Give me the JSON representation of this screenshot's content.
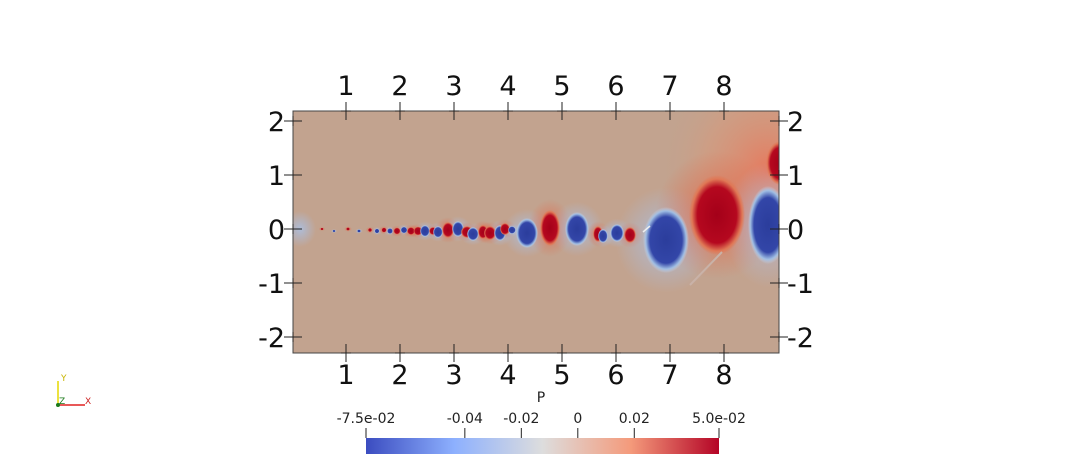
{
  "view": {
    "x_ticks": [
      "1",
      "2",
      "3",
      "4",
      "5",
      "6",
      "7",
      "8"
    ],
    "y_ticks": [
      "2",
      "1",
      "0",
      "-1",
      "-2"
    ]
  },
  "colorbar": {
    "title": "P",
    "labels": [
      "-7.5e-02",
      "-0.04",
      "-0.02",
      "0",
      "0.02",
      "5.0e-02"
    ],
    "values": [
      -0.075,
      -0.04,
      -0.02,
      0,
      0.02,
      0.05
    ],
    "range": [
      -0.075,
      0.05
    ],
    "colors": {
      "low": "#3b4cc0",
      "mid": "#dddddd",
      "high": "#b40426"
    }
  },
  "orientation": {
    "x": "X",
    "y": "Y",
    "z": "Z"
  },
  "field_colors": {
    "background": "#c2a38f",
    "positive": "#a9001e",
    "negative": "#2e3f9e",
    "pos_halo": "#e07856",
    "neg_halo": "#9fbde3"
  }
}
